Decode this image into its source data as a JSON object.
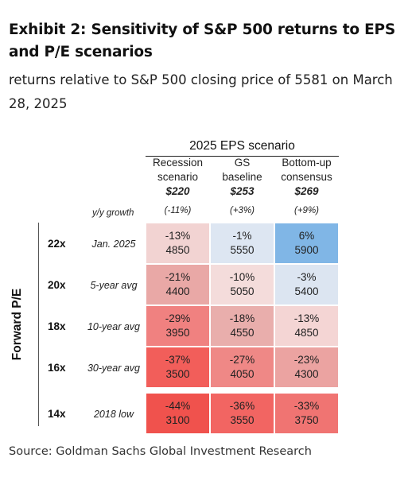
{
  "title": "Exhibit 2: Sensitivity of S&P 500 returns to EPS and P/E scenarios",
  "subtitle": "returns relative to S&P 500 closing price of 5581 on March 28, 2025",
  "table": {
    "header": "2025 EPS scenario",
    "growth_label": "y/y growth",
    "axis_label": "Forward P/E",
    "columns": [
      {
        "line1": "Recession",
        "line2": "scenario",
        "eps": "$220",
        "growth": "(-11%)"
      },
      {
        "line1": "GS",
        "line2": "baseline",
        "eps": "$253",
        "growth": "(+3%)"
      },
      {
        "line1": "Bottom-up",
        "line2": "consensus",
        "eps": "$269",
        "growth": "(+9%)"
      }
    ],
    "rows": [
      {
        "multiple": "22x",
        "label": "Jan. 2025",
        "cells": [
          {
            "ret": "-13%",
            "level": "4850",
            "color": "#f2d3d2"
          },
          {
            "ret": "-1%",
            "level": "5550",
            "color": "#dde6f2"
          },
          {
            "ret": "6%",
            "level": "5900",
            "color": "#80b6e6"
          }
        ]
      },
      {
        "multiple": "20x",
        "label": "5-year avg",
        "cells": [
          {
            "ret": "-21%",
            "level": "4400",
            "color": "#e9a8a6"
          },
          {
            "ret": "-10%",
            "level": "5050",
            "color": "#f4dcdb"
          },
          {
            "ret": "-3%",
            "level": "5400",
            "color": "#dce5f1"
          }
        ]
      },
      {
        "multiple": "18x",
        "label": "10-year avg",
        "cells": [
          {
            "ret": "-29%",
            "level": "3950",
            "color": "#f08180"
          },
          {
            "ret": "-18%",
            "level": "4550",
            "color": "#e9aeac"
          },
          {
            "ret": "-13%",
            "level": "4850",
            "color": "#f4d5d4"
          }
        ]
      },
      {
        "multiple": "16x",
        "label": "30-year avg",
        "cells": [
          {
            "ret": "-37%",
            "level": "3500",
            "color": "#f25e5a"
          },
          {
            "ret": "-27%",
            "level": "4050",
            "color": "#ef8886"
          },
          {
            "ret": "-23%",
            "level": "4300",
            "color": "#eba3a1"
          }
        ]
      },
      {
        "multiple": "14x",
        "label": "2018 low",
        "cells": [
          {
            "ret": "-44%",
            "level": "3100",
            "color": "#f0524d"
          },
          {
            "ret": "-36%",
            "level": "3550",
            "color": "#f26562"
          },
          {
            "ret": "-33%",
            "level": "3750",
            "color": "#f07472"
          }
        ]
      }
    ]
  },
  "source": "Source: Goldman Sachs Global Investment Research"
}
